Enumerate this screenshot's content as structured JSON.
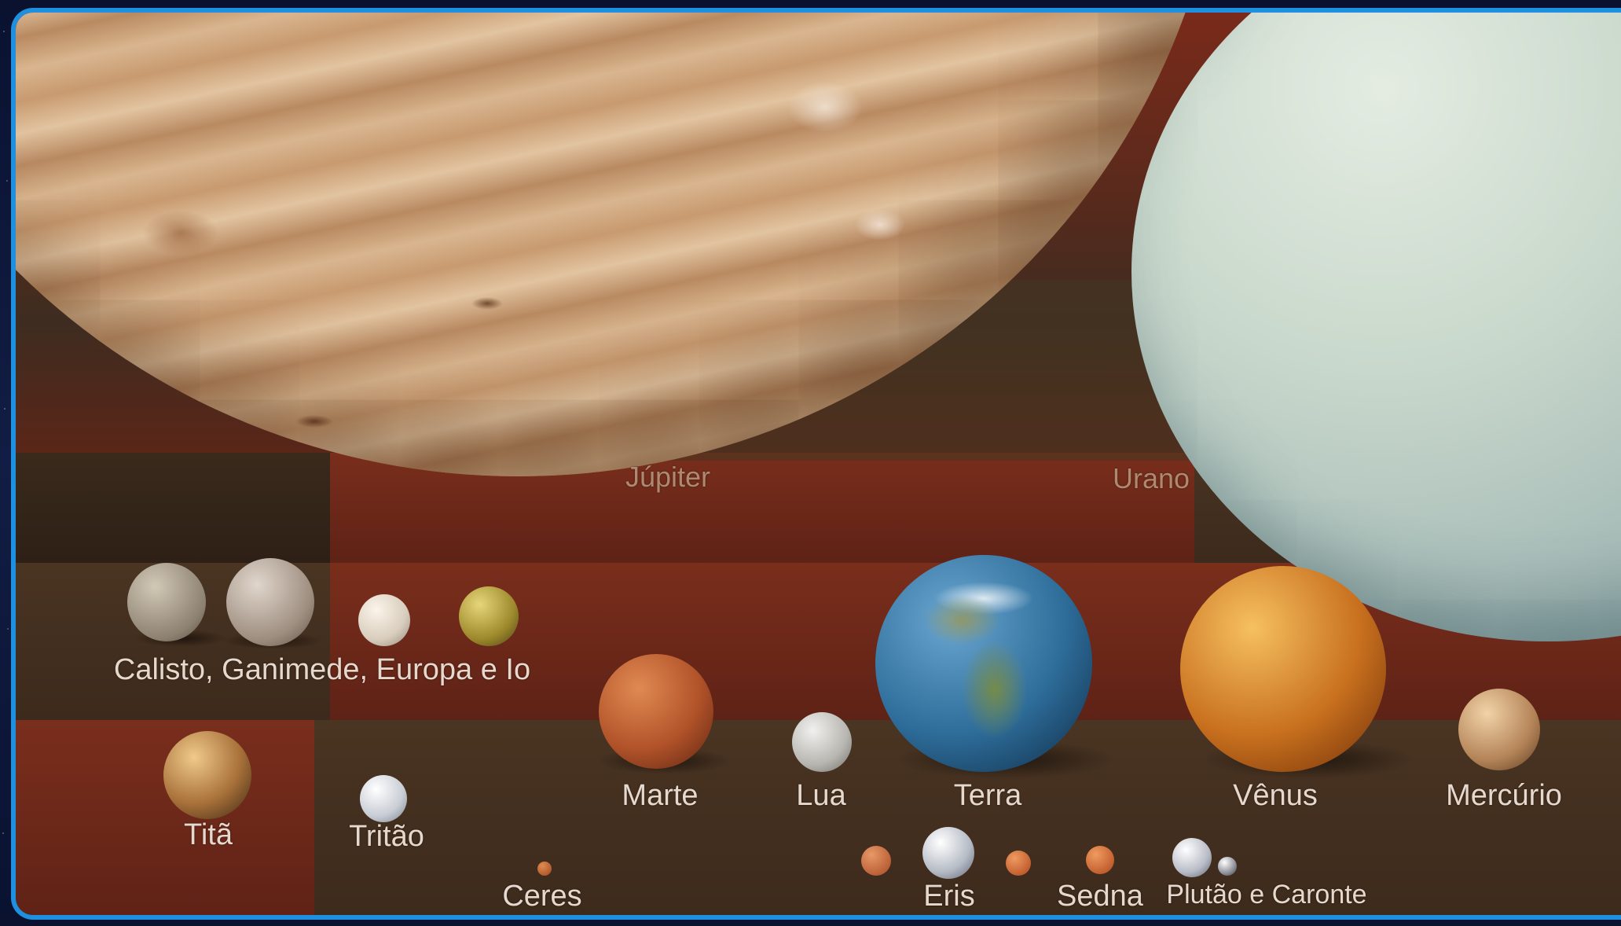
{
  "labels": {
    "jupiter": "Júpiter",
    "urano": "Urano",
    "moons_jupiter": "Calisto, Ganimede, Europa e Io",
    "tita": "Titã",
    "tritao": "Tritão",
    "marte": "Marte",
    "lua": "Lua",
    "terra": "Terra",
    "venus": "Vênus",
    "mercurio": "Mercúrio",
    "ceres": "Ceres",
    "eris": "Eris",
    "sedna": "Sedna",
    "plutao_caronte": "Plutão e Caronte"
  },
  "colors": {
    "frame_border": "#1f8fe0",
    "jupiter": "#c9a27e",
    "urano": "#b9cfc8",
    "terra": "#2e6d9a",
    "venus": "#c8701e",
    "marte": "#b2532a"
  }
}
